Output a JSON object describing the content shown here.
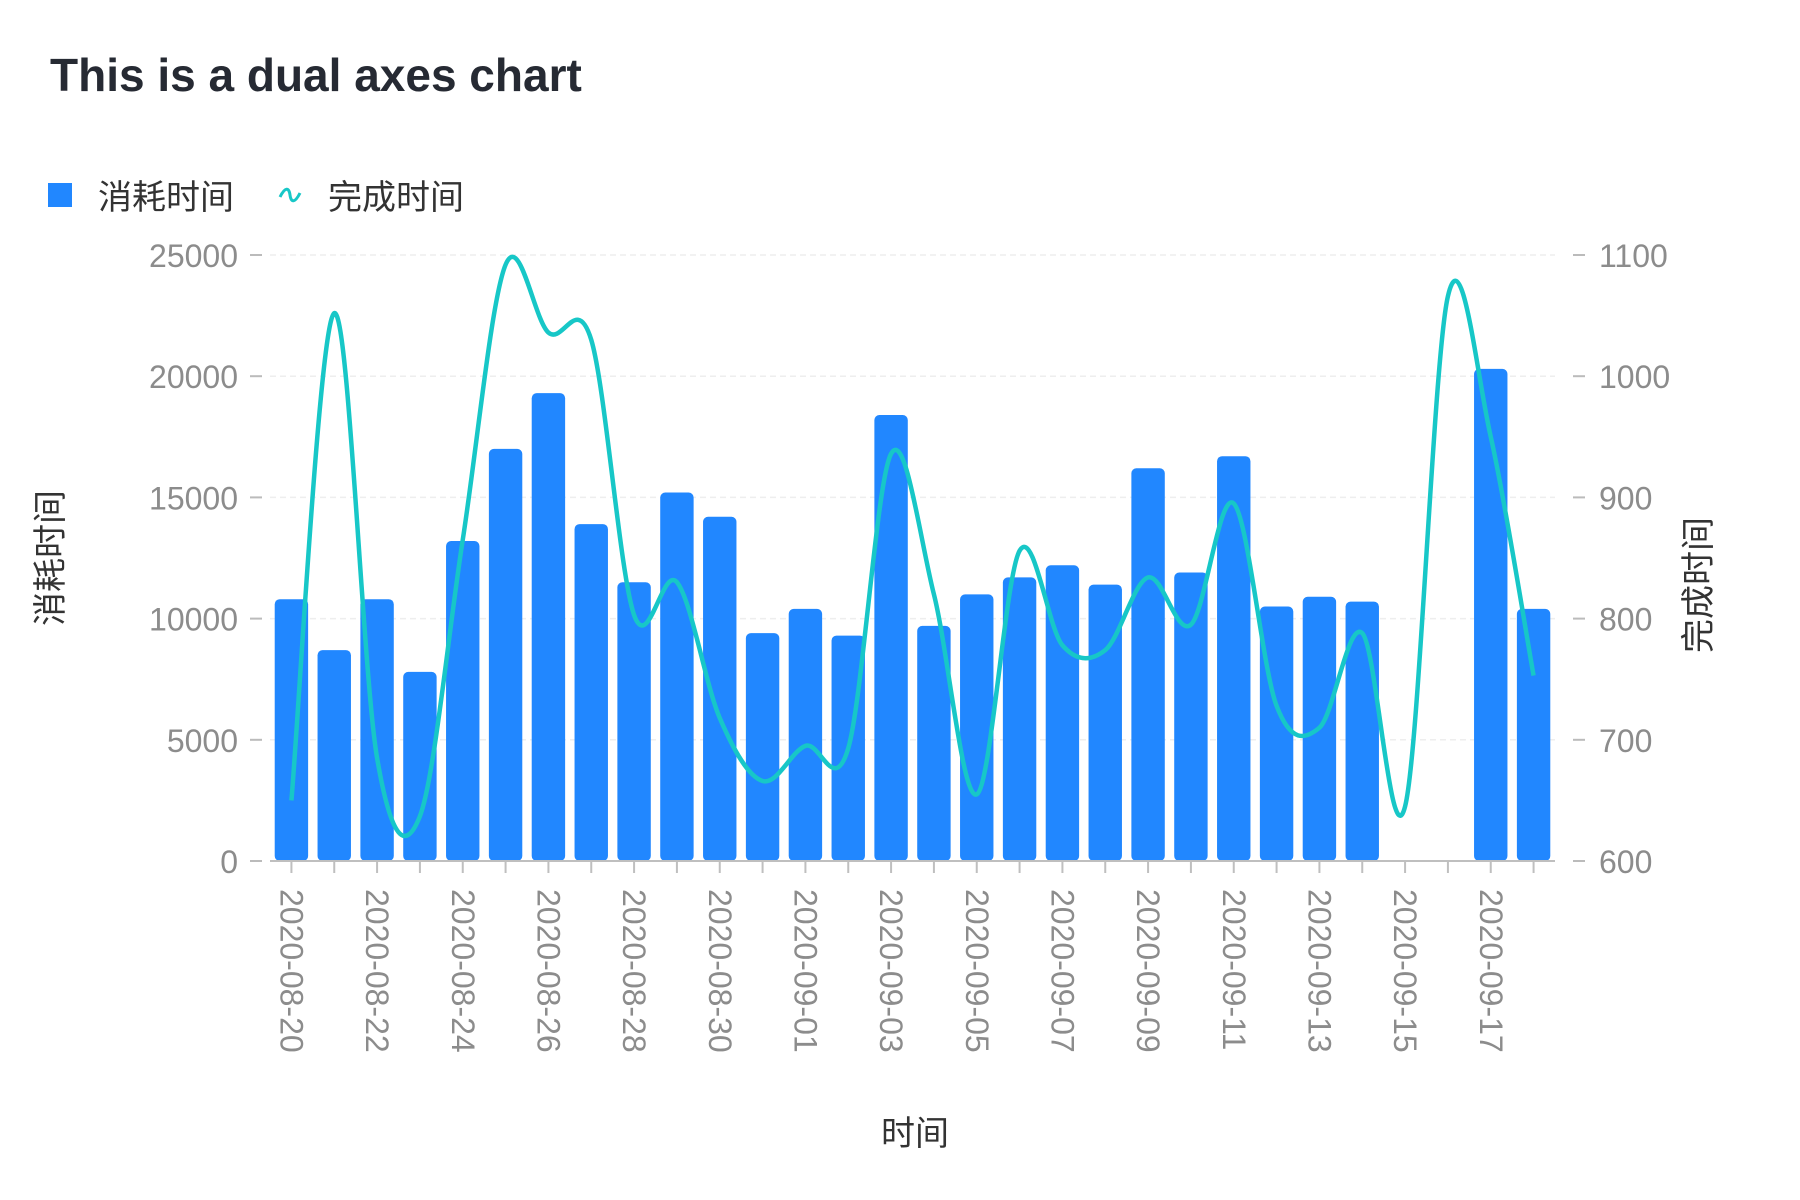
{
  "chart_data": {
    "type": "bar",
    "title": "This is a dual axes chart",
    "xlabel": "时间",
    "ylabel": "消耗时间",
    "y2label": "完成时间",
    "legend": [
      "消耗时间",
      "完成时间"
    ],
    "colors": {
      "bar": "#2187ff",
      "line": "#17c7c7",
      "grid": "#eeeeee",
      "axis_text": "#8c8c8c"
    },
    "ylim": [
      0,
      25000
    ],
    "y2lim": [
      600,
      1100
    ],
    "yticks": [
      "0",
      "5000",
      "10000",
      "15000",
      "20000",
      "25000"
    ],
    "y2ticks": [
      "600",
      "700",
      "800",
      "900",
      "1000",
      "1100"
    ],
    "categories": [
      "2020-08-20",
      "2020-08-21",
      "2020-08-22",
      "2020-08-23",
      "2020-08-24",
      "2020-08-25",
      "2020-08-26",
      "2020-08-27",
      "2020-08-28",
      "2020-08-29",
      "2020-08-30",
      "2020-08-31",
      "2020-09-01",
      "2020-09-02",
      "2020-09-03",
      "2020-09-04",
      "2020-09-05",
      "2020-09-06",
      "2020-09-07",
      "2020-09-08",
      "2020-09-09",
      "2020-09-10",
      "2020-09-11",
      "2020-09-12",
      "2020-09-13",
      "2020-09-14",
      "2020-09-15",
      "2020-09-16",
      "2020-09-17",
      "2020-09-18"
    ],
    "xtick_labels": [
      "2020-08-20",
      "2020-08-22",
      "2020-08-24",
      "2020-08-26",
      "2020-08-28",
      "2020-08-30",
      "2020-09-01",
      "2020-09-03",
      "2020-09-05",
      "2020-09-07",
      "2020-09-09",
      "2020-09-11",
      "2020-09-13",
      "2020-09-15",
      "2020-09-17"
    ],
    "series": [
      {
        "name": "消耗时间",
        "type": "bar",
        "axis": "left",
        "values": [
          10800,
          8700,
          10800,
          7800,
          13200,
          17000,
          19300,
          13900,
          11500,
          15200,
          14200,
          9400,
          10400,
          9300,
          18400,
          9700,
          11000,
          11700,
          12200,
          11400,
          16200,
          11900,
          16700,
          10500,
          10900,
          10700,
          0,
          0,
          20300,
          10400
        ]
      },
      {
        "name": "完成时间",
        "type": "line",
        "axis": "right",
        "values": [
          650,
          1052,
          685,
          637,
          865,
          1092,
          1036,
          1030,
          803,
          830,
          718,
          666,
          695,
          693,
          936,
          820,
          655,
          856,
          778,
          774,
          834,
          795,
          895,
          728,
          710,
          788,
          645,
          1066,
          950,
          753
        ]
      }
    ]
  }
}
